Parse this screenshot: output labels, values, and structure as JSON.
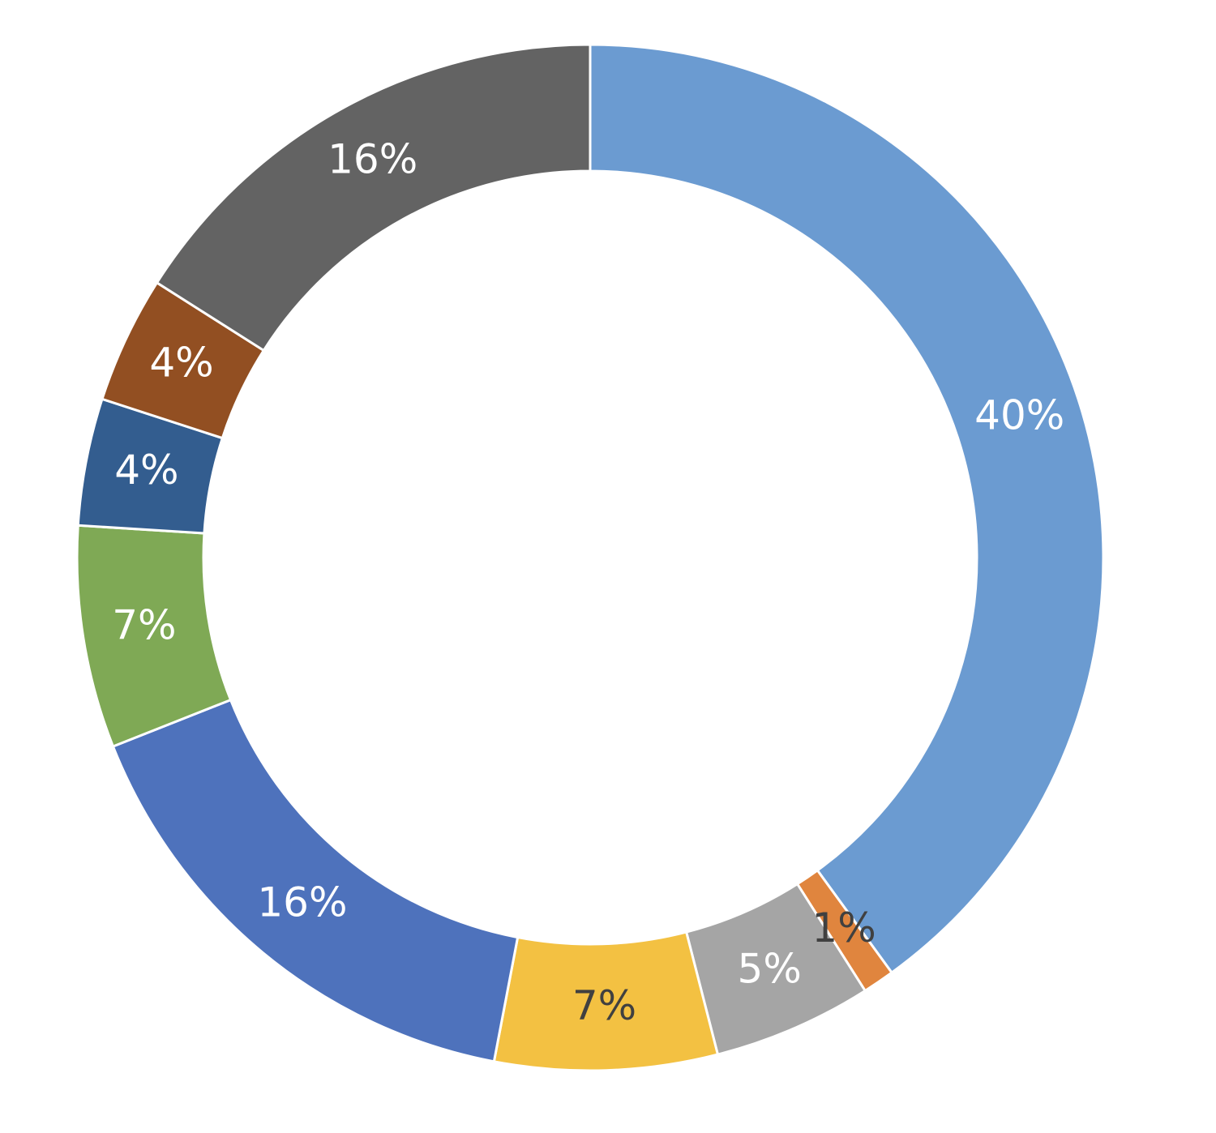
{
  "chart_data": {
    "type": "donut",
    "values": [
      40,
      1,
      5,
      7,
      16,
      7,
      4,
      4,
      16
    ],
    "value_labels": [
      "40%",
      "1%",
      "5%",
      "7%",
      "16%",
      "7%",
      "4%",
      "4%",
      "16%"
    ],
    "colors": [
      "#6b9bd1",
      "#e0853e",
      "#a5a5a5",
      "#f3c142",
      "#4e72bc",
      "#7fa955",
      "#335d8f",
      "#924f22",
      "#636363"
    ],
    "label_colors": [
      "#ffffff",
      "#404040",
      "#ffffff",
      "#404040",
      "#ffffff",
      "#ffffff",
      "#ffffff",
      "#ffffff",
      "#ffffff"
    ]
  }
}
